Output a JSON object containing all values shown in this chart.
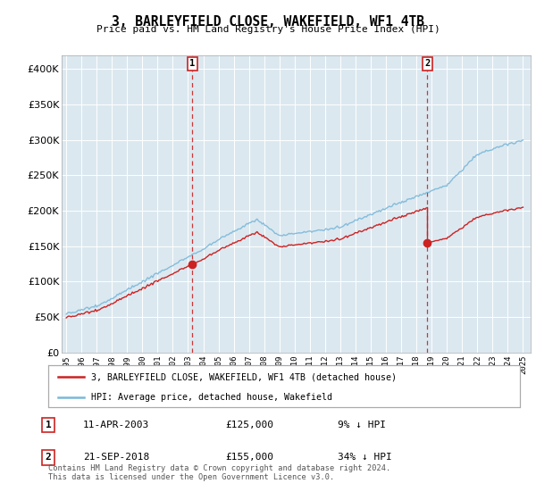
{
  "title": "3, BARLEYFIELD CLOSE, WAKEFIELD, WF1 4TB",
  "subtitle": "Price paid vs. HM Land Registry's House Price Index (HPI)",
  "legend_line1": "3, BARLEYFIELD CLOSE, WAKEFIELD, WF1 4TB (detached house)",
  "legend_line2": "HPI: Average price, detached house, Wakefield",
  "sale1_date": "11-APR-2003",
  "sale1_price": "£125,000",
  "sale1_hpi": "9% ↓ HPI",
  "sale1_year": 2003.28,
  "sale1_value": 125000,
  "sale2_date": "21-SEP-2018",
  "sale2_price": "£155,000",
  "sale2_hpi": "34% ↓ HPI",
  "sale2_year": 2018.72,
  "sale2_value": 155000,
  "hpi_color": "#7ab8d9",
  "price_color": "#cc2222",
  "vline_color": "#cc2222",
  "plot_bg_color": "#dce8f0",
  "ylim_min": 0,
  "ylim_max": 420000,
  "yticks": [
    0,
    50000,
    100000,
    150000,
    200000,
    250000,
    300000,
    350000,
    400000
  ],
  "year_start": 1995,
  "year_end": 2025,
  "footnote1": "Contains HM Land Registry data © Crown copyright and database right 2024.",
  "footnote2": "This data is licensed under the Open Government Licence v3.0."
}
